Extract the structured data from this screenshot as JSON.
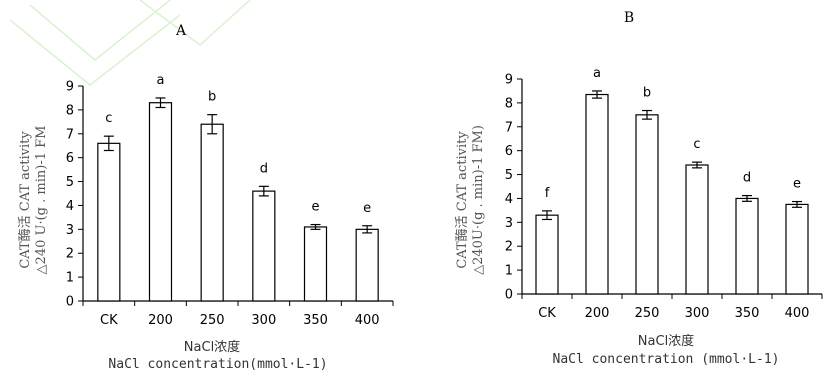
{
  "chart_data": [
    {
      "type": "bar",
      "panel": "A",
      "categories": [
        "CK",
        "200",
        "250",
        "300",
        "350",
        "400"
      ],
      "values": [
        6.6,
        8.3,
        7.4,
        4.6,
        3.1,
        3.0
      ],
      "errors": [
        0.3,
        0.2,
        0.4,
        0.2,
        0.1,
        0.15
      ],
      "significance": [
        "c",
        "a",
        "b",
        "d",
        "e",
        "e"
      ],
      "ylabel_lines": [
        "CAT酶活 CAT activity",
        "△240 U·(g . min)-1 FM"
      ],
      "xlabel_lines": [
        "NaCl浓度",
        "NaCl concentration(mmol·L-1)"
      ],
      "ylim": [
        0,
        9
      ],
      "yticks": [
        0,
        1,
        2,
        3,
        4,
        5,
        6,
        7,
        8,
        9
      ]
    },
    {
      "type": "bar",
      "panel": "B",
      "categories": [
        "CK",
        "200",
        "250",
        "300",
        "350",
        "400"
      ],
      "values": [
        3.3,
        8.35,
        7.5,
        5.4,
        4.0,
        3.75
      ],
      "errors": [
        0.18,
        0.15,
        0.18,
        0.12,
        0.12,
        0.12
      ],
      "significance": [
        "f",
        "a",
        "b",
        "c",
        "d",
        "e"
      ],
      "ylabel_lines": [
        "CAT酶活 CAT activity",
        "△240U·(g . min)-1 FM)"
      ],
      "xlabel_lines": [
        "NaCl浓度",
        "NaCl concentration (mmol·L-1)"
      ],
      "ylim": [
        0,
        9
      ],
      "yticks": [
        0,
        1,
        2,
        3,
        4,
        5,
        6,
        7,
        8,
        9
      ]
    }
  ]
}
